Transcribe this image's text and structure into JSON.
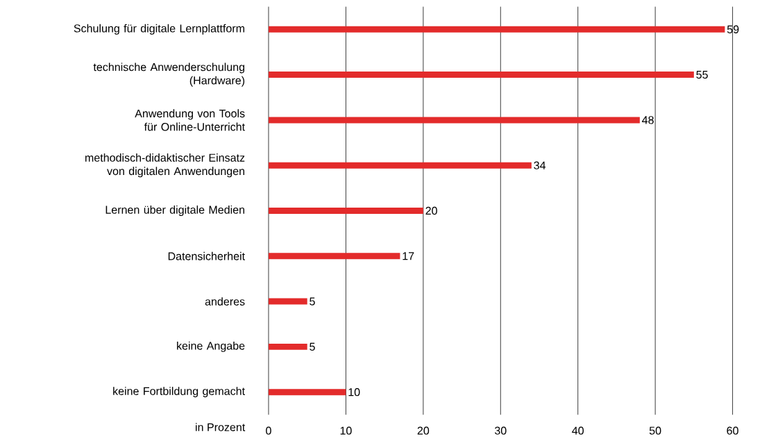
{
  "chart_data": {
    "type": "bar",
    "orientation": "horizontal",
    "categories": [
      "Schulung für digitale Lernplattform",
      "technische Anwenderschulung (Hardware)",
      "Anwendung von Tools für Online-Unterricht",
      "methodisch-didaktischer Einsatz von digitalen Anwendungen",
      "Lernen über digitale Medien",
      "Datensicherheit",
      "anderes",
      "keine Angabe",
      "keine Fortbildung gemacht"
    ],
    "values": [
      59,
      55,
      48,
      34,
      20,
      17,
      5,
      5,
      10
    ],
    "color": "#e32b2b",
    "xlabel": "in Prozent",
    "xlim": [
      0,
      60
    ],
    "xticks": [
      0,
      10,
      20,
      30,
      40,
      50,
      60
    ],
    "grid": "x",
    "data_labels": true
  }
}
